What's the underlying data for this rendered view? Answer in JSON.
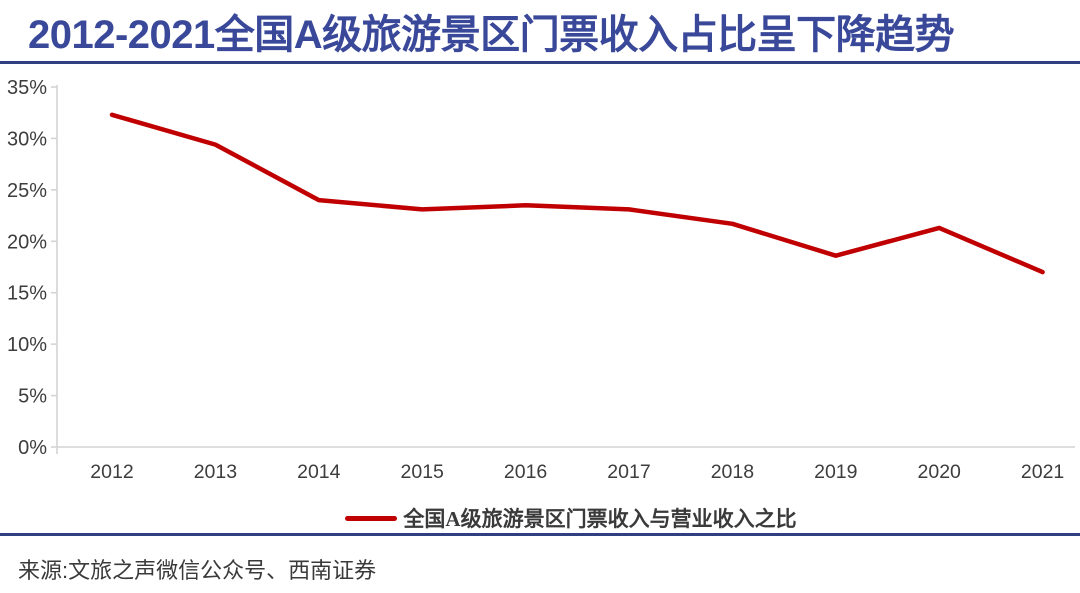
{
  "page": {
    "title": "2012-2021全国A级旅游景区门票收入占比呈下降趋势",
    "source_note": "来源:文旅之声微信公众号、西南证券",
    "colors": {
      "background": "#FFFFFF",
      "title_navy": "#3A489A",
      "rule_navy": "#303E82",
      "line_red": "#C00000",
      "axis_gray": "#D4D4D4",
      "label_gray": "#3D3D3D"
    }
  },
  "chart_data": {
    "type": "line",
    "title": "2012-2021全国A级旅游景区门票收入占比呈下降趋势",
    "categories": [
      "2012",
      "2013",
      "2014",
      "2015",
      "2016",
      "2017",
      "2018",
      "2019",
      "2020",
      "2021"
    ],
    "series": [
      {
        "name": "全国A级旅游景区门票收入与营业收入之比",
        "color": "#C00000",
        "values": [
          32.3,
          29.4,
          24.0,
          23.1,
          23.5,
          23.1,
          21.7,
          18.6,
          21.3,
          17.0
        ]
      }
    ],
    "xlabel": "",
    "ylabel": "",
    "ylim": [
      0,
      35
    ],
    "ytick_step": 5,
    "ytick_suffix": "%",
    "grid": false,
    "legend_position": "bottom-center",
    "source": "来源:文旅之声微信公众号、西南证券"
  }
}
